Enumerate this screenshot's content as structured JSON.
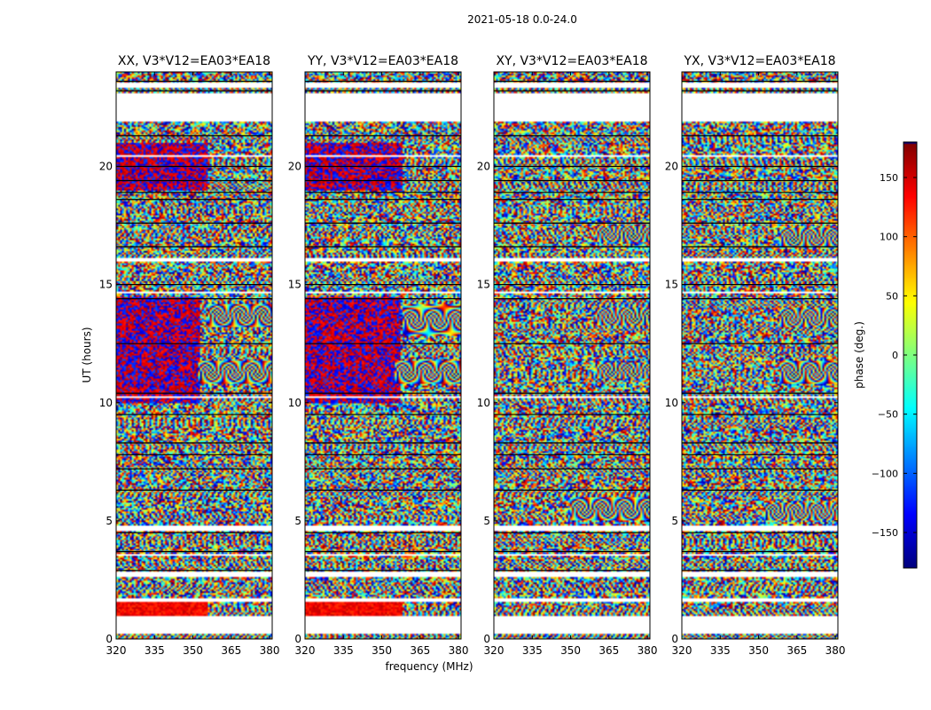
{
  "suptitle": "2021-05-18 0.0-24.0",
  "colors": {
    "background": "#ffffff",
    "axis": "#000000",
    "gap": "#ffffff",
    "colormap": [
      "#00007f",
      "#0000ff",
      "#007fff",
      "#00ffff",
      "#7fff7f",
      "#ffff00",
      "#ff7f00",
      "#ff0000",
      "#7f0000"
    ]
  },
  "chart_data": [
    {
      "type": "heatmap",
      "title": "XX, V3*V12=EA03*EA18",
      "xlabel": "",
      "ylabel": "UT (hours)",
      "xlim": [
        320,
        381
      ],
      "ylim": [
        0,
        24
      ],
      "xticks": [
        320,
        335,
        350,
        365,
        380
      ],
      "yticks": [
        0,
        5,
        10,
        15,
        20
      ],
      "coherent_regions": [
        {
          "name": "flat-red",
          "freq": [
            320,
            356
          ],
          "ut": [
            1.0,
            1.6
          ]
        },
        {
          "name": "fringes",
          "freq": [
            356,
            381
          ],
          "ut": [
            13.2,
            14.2
          ]
        },
        {
          "name": "fringes",
          "freq": [
            352,
            381
          ],
          "ut": [
            10.8,
            11.8
          ]
        },
        {
          "name": "red-blue",
          "freq": [
            320,
            353
          ],
          "ut": [
            10.0,
            14.5
          ]
        },
        {
          "name": "red-blue",
          "freq": [
            320,
            356
          ],
          "ut": [
            19.0,
            21.0
          ]
        }
      ]
    },
    {
      "type": "heatmap",
      "title": "YY, V3*V12=EA03*EA18",
      "xlabel": "frequency (MHz)",
      "ylabel": "",
      "xlim": [
        320,
        381
      ],
      "ylim": [
        0,
        24
      ],
      "xticks": [
        320,
        335,
        350,
        365,
        380
      ],
      "yticks": [
        0,
        5,
        10,
        15,
        20
      ],
      "coherent_regions": [
        {
          "name": "flat-red",
          "freq": [
            320,
            358
          ],
          "ut": [
            1.0,
            1.6
          ]
        },
        {
          "name": "fringes",
          "freq": [
            358,
            381
          ],
          "ut": [
            12.8,
            14.2
          ]
        },
        {
          "name": "fringes",
          "freq": [
            355,
            381
          ],
          "ut": [
            10.8,
            11.8
          ]
        },
        {
          "name": "red-blue",
          "freq": [
            320,
            357
          ],
          "ut": [
            10.0,
            14.5
          ]
        },
        {
          "name": "red-blue",
          "freq": [
            320,
            358
          ],
          "ut": [
            19.0,
            21.0
          ]
        }
      ]
    },
    {
      "type": "heatmap",
      "title": "XY, V3*V12=EA03*EA18",
      "xlabel": "",
      "ylabel": "",
      "xlim": [
        320,
        381
      ],
      "ylim": [
        0,
        24
      ],
      "xticks": [
        320,
        335,
        350,
        365,
        380
      ],
      "yticks": [
        0,
        5,
        10,
        15,
        20
      ],
      "coherent_regions": [
        {
          "name": "fringes",
          "freq": [
            360,
            381
          ],
          "ut": [
            13.3,
            14.0
          ]
        },
        {
          "name": "fringes",
          "freq": [
            360,
            381
          ],
          "ut": [
            11.0,
            11.7
          ]
        },
        {
          "name": "fringes",
          "freq": [
            360,
            381
          ],
          "ut": [
            16.8,
            17.5
          ]
        },
        {
          "name": "fringes",
          "freq": [
            350,
            381
          ],
          "ut": [
            5.0,
            6.0
          ]
        }
      ]
    },
    {
      "type": "heatmap",
      "title": "YX, V3*V12=EA03*EA18",
      "xlabel": "",
      "ylabel": "",
      "xlim": [
        320,
        381
      ],
      "ylim": [
        0,
        24
      ],
      "xticks": [
        320,
        335,
        350,
        365,
        380
      ],
      "yticks": [
        0,
        5,
        10,
        15,
        20
      ],
      "coherent_regions": [
        {
          "name": "fringes",
          "freq": [
            358,
            381
          ],
          "ut": [
            13.2,
            14.0
          ]
        },
        {
          "name": "fringes",
          "freq": [
            358,
            381
          ],
          "ut": [
            10.8,
            11.8
          ]
        },
        {
          "name": "fringes",
          "freq": [
            358,
            381
          ],
          "ut": [
            16.6,
            17.4
          ]
        },
        {
          "name": "fringes",
          "freq": [
            352,
            381
          ],
          "ut": [
            5.0,
            5.8
          ]
        }
      ]
    }
  ],
  "data_gaps_ut": [
    [
      0.2,
      1.0
    ],
    [
      1.55,
      1.75
    ],
    [
      2.6,
      2.85
    ],
    [
      4.6,
      4.8
    ],
    [
      20.4,
      20.5
    ],
    [
      21.9,
      23.1
    ],
    [
      23.3,
      23.55
    ],
    [
      3.5,
      3.6
    ],
    [
      14.6,
      14.7
    ],
    [
      16.0,
      16.1
    ],
    [
      10.2,
      10.3
    ]
  ],
  "dark_lines_ut": [
    2.9,
    3.7,
    4.5,
    6.3,
    7.2,
    7.8,
    8.3,
    9.5,
    10.4,
    12.5,
    14.4,
    15.0,
    16.6,
    17.6,
    18.6,
    18.9,
    19.4,
    20.0,
    21.3,
    23.2,
    23.6
  ],
  "colorbar": {
    "label": "phase (deg.)",
    "range": [
      -180,
      180
    ],
    "ticks": [
      150,
      100,
      50,
      0,
      -50,
      -100,
      -150
    ],
    "tick_labels": [
      "150",
      "100",
      "50",
      "0",
      "−50",
      "−100",
      "−150"
    ]
  }
}
